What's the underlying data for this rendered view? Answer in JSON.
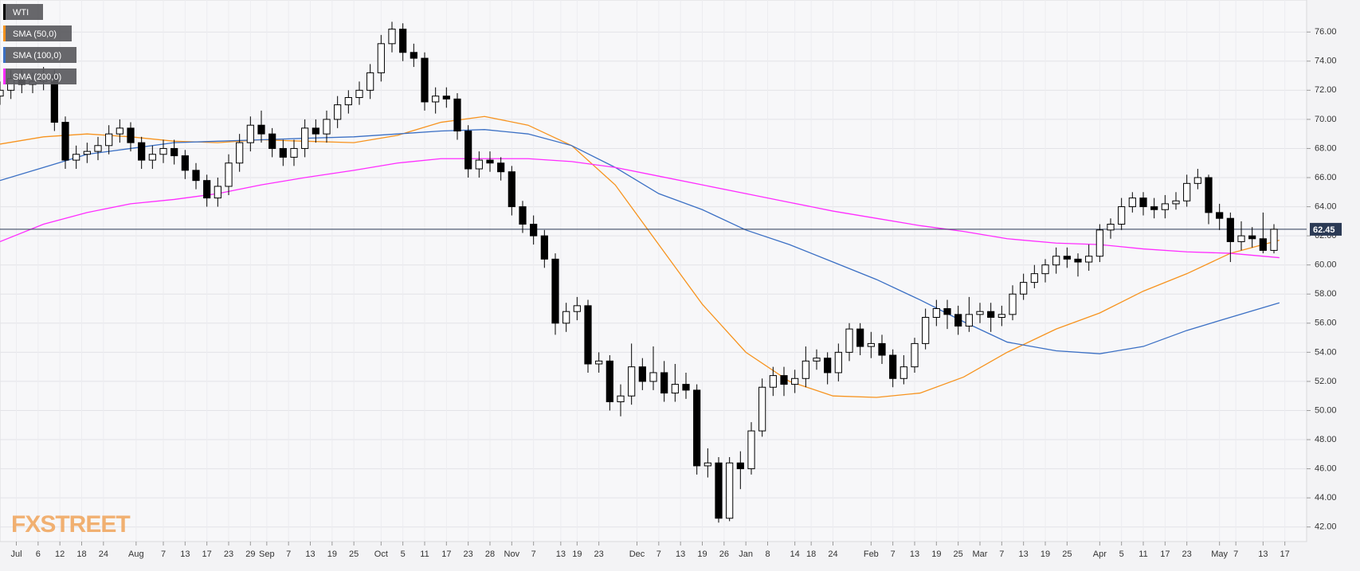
{
  "chart_data": {
    "type": "candlestick",
    "watermark": "FXSTREET",
    "xlim": [
      0,
      240
    ],
    "ylim": [
      41,
      78.2
    ],
    "grid": true,
    "legend": "top-left",
    "yticks": [
      {
        "value": 42,
        "label": "42.00"
      },
      {
        "value": 44,
        "label": "44.00"
      },
      {
        "value": 46,
        "label": "46.00"
      },
      {
        "value": 48,
        "label": "48.00"
      },
      {
        "value": 50,
        "label": "50.00"
      },
      {
        "value": 52,
        "label": "52.00"
      },
      {
        "value": 54,
        "label": "54.00"
      },
      {
        "value": 56,
        "label": "56.00"
      },
      {
        "value": 58,
        "label": "58.00"
      },
      {
        "value": 60,
        "label": "60.00"
      },
      {
        "value": 62,
        "label": "62.00"
      },
      {
        "value": 64,
        "label": "64.00"
      },
      {
        "value": 66,
        "label": "66.00"
      },
      {
        "value": 68,
        "label": "68.00"
      },
      {
        "value": 70,
        "label": "70.00"
      },
      {
        "value": 72,
        "label": "72.00"
      },
      {
        "value": 74,
        "label": "74.00"
      },
      {
        "value": 76,
        "label": "76.00"
      }
    ],
    "xticks": [
      {
        "value": 3,
        "label": "Jul"
      },
      {
        "value": 7,
        "label": "6"
      },
      {
        "value": 11,
        "label": "12"
      },
      {
        "value": 15,
        "label": "18"
      },
      {
        "value": 19,
        "label": "24"
      },
      {
        "value": 25,
        "label": "Aug"
      },
      {
        "value": 30,
        "label": "7"
      },
      {
        "value": 34,
        "label": "13"
      },
      {
        "value": 38,
        "label": "17"
      },
      {
        "value": 42,
        "label": "23"
      },
      {
        "value": 46,
        "label": "29"
      },
      {
        "value": 49,
        "label": "Sep"
      },
      {
        "value": 53,
        "label": "7"
      },
      {
        "value": 57,
        "label": "13"
      },
      {
        "value": 61,
        "label": "19"
      },
      {
        "value": 65,
        "label": "25"
      },
      {
        "value": 70,
        "label": "Oct"
      },
      {
        "value": 74,
        "label": "5"
      },
      {
        "value": 78,
        "label": "11"
      },
      {
        "value": 82,
        "label": "17"
      },
      {
        "value": 86,
        "label": "23"
      },
      {
        "value": 90,
        "label": "28"
      },
      {
        "value": 94,
        "label": "Nov"
      },
      {
        "value": 98,
        "label": "7"
      },
      {
        "value": 103,
        "label": "13"
      },
      {
        "value": 106,
        "label": "19"
      },
      {
        "value": 110,
        "label": "23"
      },
      {
        "value": 117,
        "label": "Dec"
      },
      {
        "value": 121,
        "label": "7"
      },
      {
        "value": 125,
        "label": "13"
      },
      {
        "value": 129,
        "label": "19"
      },
      {
        "value": 133,
        "label": "26"
      },
      {
        "value": 137,
        "label": "Jan"
      },
      {
        "value": 141,
        "label": "8"
      },
      {
        "value": 146,
        "label": "14"
      },
      {
        "value": 149,
        "label": "18"
      },
      {
        "value": 153,
        "label": "24"
      },
      {
        "value": 160,
        "label": "Feb"
      },
      {
        "value": 164,
        "label": "7"
      },
      {
        "value": 168,
        "label": "13"
      },
      {
        "value": 172,
        "label": "19"
      },
      {
        "value": 176,
        "label": "25"
      },
      {
        "value": 180,
        "label": "Mar"
      },
      {
        "value": 184,
        "label": "7"
      },
      {
        "value": 188,
        "label": "13"
      },
      {
        "value": 192,
        "label": "19"
      },
      {
        "value": 196,
        "label": "25"
      },
      {
        "value": 202,
        "label": "Apr"
      },
      {
        "value": 206,
        "label": "5"
      },
      {
        "value": 210,
        "label": "11"
      },
      {
        "value": 214,
        "label": "17"
      },
      {
        "value": 218,
        "label": "23"
      },
      {
        "value": 224,
        "label": "May"
      },
      {
        "value": 227,
        "label": "7"
      },
      {
        "value": 232,
        "label": "13"
      },
      {
        "value": 236,
        "label": "17"
      }
    ],
    "last_price": 62.45,
    "candles": {
      "name": "WTI",
      "color": "#000000",
      "x": [
        0,
        2,
        4,
        6,
        8,
        10,
        12,
        14,
        16,
        18,
        20,
        22,
        24,
        26,
        28,
        30,
        32,
        34,
        36,
        38,
        40,
        42,
        44,
        46,
        48,
        50,
        52,
        54,
        56,
        58,
        60,
        62,
        64,
        66,
        68,
        70,
        72,
        74,
        76,
        78,
        80,
        82,
        84,
        86,
        88,
        90,
        92,
        94,
        96,
        98,
        100,
        102,
        104,
        106,
        108,
        110,
        112,
        114,
        116,
        118,
        120,
        122,
        124,
        126,
        128,
        130,
        132,
        134,
        136,
        138,
        140,
        142,
        144,
        146,
        148,
        150,
        152,
        154,
        156,
        158,
        160,
        162,
        164,
        166,
        168,
        170,
        172,
        174,
        176,
        178,
        180,
        182,
        184,
        186,
        188,
        190,
        192,
        194,
        196,
        198,
        200,
        202,
        204,
        206,
        208,
        210,
        212,
        214,
        216,
        218,
        220,
        222,
        224,
        226,
        228,
        230,
        232,
        234
      ],
      "open": [
        71.6,
        72.0,
        72.8,
        72.4,
        72.6,
        73.0,
        69.8,
        67.2,
        67.6,
        67.8,
        68.2,
        69.0,
        69.4,
        68.4,
        67.2,
        67.6,
        68.0,
        67.5,
        66.5,
        65.8,
        64.6,
        65.4,
        67.0,
        68.4,
        69.6,
        69.0,
        68.0,
        67.4,
        68.0,
        69.4,
        69.0,
        70.0,
        71.0,
        71.5,
        72.0,
        73.2,
        75.2,
        76.2,
        74.6,
        74.2,
        71.2,
        71.6,
        71.4,
        69.2,
        66.6,
        67.2,
        67.0,
        66.4,
        64.0,
        62.8,
        62.0,
        60.4,
        56.0,
        56.8,
        57.2,
        53.2,
        53.4,
        50.6,
        51.0,
        53.0,
        52.0,
        52.6,
        51.2,
        51.8,
        51.4,
        46.2,
        46.4,
        42.6,
        46.4,
        46.0,
        48.6,
        51.6,
        52.4,
        51.8,
        52.2,
        53.4,
        53.6,
        52.6,
        54.0,
        55.6,
        54.4,
        54.6,
        53.8,
        52.2,
        53.0,
        54.6,
        56.4,
        57.0,
        56.6,
        55.8,
        56.6,
        56.8,
        56.4,
        56.6,
        58.0,
        58.8,
        59.4,
        60.0,
        60.6,
        60.4,
        60.2,
        60.6,
        62.4,
        62.8,
        64.0,
        64.6,
        64.0,
        63.8,
        64.2,
        64.4,
        65.6,
        66.0,
        63.6,
        63.2,
        61.6,
        62.0,
        61.8,
        61.0
      ],
      "high": [
        72.6,
        73.4,
        73.4,
        73.2,
        73.6,
        73.4,
        70.2,
        68.2,
        68.4,
        68.8,
        69.6,
        70.0,
        69.8,
        68.8,
        68.2,
        68.6,
        68.6,
        67.9,
        67.0,
        66.2,
        66.0,
        67.6,
        69.0,
        70.2,
        70.6,
        69.4,
        68.6,
        68.6,
        70.0,
        70.0,
        70.6,
        71.6,
        72.0,
        72.6,
        73.8,
        75.8,
        76.7,
        76.6,
        75.2,
        74.6,
        72.2,
        72.2,
        71.8,
        69.6,
        67.8,
        67.8,
        67.4,
        66.8,
        64.4,
        63.4,
        62.4,
        60.8,
        57.4,
        57.8,
        57.6,
        54.0,
        53.8,
        51.8,
        54.6,
        53.6,
        54.4,
        53.4,
        53.2,
        52.6,
        51.8,
        47.4,
        46.8,
        46.8,
        47.2,
        49.2,
        52.2,
        53.0,
        53.0,
        52.8,
        54.4,
        54.2,
        54.0,
        54.6,
        56.0,
        56.0,
        55.4,
        55.2,
        54.2,
        53.8,
        55.0,
        57.0,
        57.6,
        57.6,
        57.2,
        57.8,
        57.4,
        57.4,
        57.2,
        58.6,
        59.4,
        60.0,
        60.4,
        61.2,
        61.2,
        60.8,
        61.4,
        62.8,
        63.2,
        64.6,
        65.0,
        65.0,
        64.6,
        64.8,
        65.0,
        66.2,
        66.6,
        66.2,
        64.2,
        63.6,
        63.0,
        62.6,
        63.6,
        62.8
      ],
      "low": [
        71.0,
        71.4,
        71.8,
        71.8,
        72.0,
        69.2,
        66.6,
        66.6,
        67.0,
        67.2,
        67.6,
        68.4,
        67.8,
        66.6,
        66.6,
        67.0,
        66.9,
        65.9,
        65.2,
        64.0,
        64.0,
        64.8,
        66.4,
        67.8,
        68.4,
        67.4,
        66.8,
        66.8,
        67.4,
        68.4,
        68.4,
        69.4,
        70.4,
        71.0,
        71.4,
        72.6,
        74.6,
        74.0,
        73.6,
        70.6,
        70.4,
        70.8,
        68.6,
        66.0,
        66.0,
        66.4,
        65.8,
        63.4,
        62.2,
        61.4,
        59.8,
        55.2,
        55.4,
        56.2,
        52.6,
        52.6,
        50.0,
        49.6,
        50.4,
        51.4,
        51.4,
        50.6,
        50.6,
        50.8,
        45.6,
        45.4,
        42.3,
        42.4,
        44.6,
        45.6,
        48.2,
        51.0,
        51.0,
        51.2,
        51.6,
        52.8,
        51.8,
        52.0,
        53.4,
        53.8,
        53.6,
        53.2,
        51.6,
        51.8,
        52.6,
        54.2,
        55.8,
        55.6,
        55.2,
        55.4,
        56.0,
        55.4,
        55.8,
        56.2,
        57.6,
        58.4,
        58.8,
        59.4,
        59.8,
        59.2,
        59.6,
        60.2,
        61.8,
        62.4,
        63.6,
        63.4,
        63.2,
        63.2,
        63.8,
        64.0,
        65.2,
        62.8,
        62.4,
        60.2,
        61.0,
        61.2,
        60.8,
        60.8
      ],
      "close": [
        72.0,
        72.8,
        72.4,
        72.6,
        73.0,
        69.8,
        67.2,
        67.6,
        67.8,
        68.2,
        69.0,
        69.4,
        68.4,
        67.2,
        67.6,
        68.0,
        67.5,
        66.5,
        65.8,
        64.6,
        65.4,
        67.0,
        68.4,
        69.6,
        69.0,
        68.0,
        67.4,
        68.0,
        69.4,
        69.0,
        70.0,
        71.0,
        71.5,
        72.0,
        73.2,
        75.2,
        76.2,
        74.6,
        74.2,
        71.2,
        71.6,
        71.4,
        69.2,
        66.6,
        67.2,
        67.0,
        66.4,
        64.0,
        62.8,
        62.0,
        60.4,
        56.0,
        56.8,
        57.2,
        53.2,
        53.4,
        50.6,
        51.0,
        53.0,
        52.0,
        52.6,
        51.2,
        51.8,
        51.4,
        46.2,
        46.4,
        42.6,
        46.4,
        46.0,
        48.6,
        51.6,
        52.4,
        51.8,
        52.2,
        53.4,
        53.6,
        52.6,
        54.0,
        55.6,
        54.4,
        54.6,
        53.8,
        52.2,
        53.0,
        54.6,
        56.4,
        57.0,
        56.6,
        55.8,
        56.6,
        56.8,
        56.4,
        56.6,
        58.0,
        58.8,
        59.4,
        60.0,
        60.6,
        60.4,
        60.2,
        60.6,
        62.4,
        62.8,
        64.0,
        64.6,
        64.0,
        63.8,
        64.2,
        64.4,
        65.6,
        66.0,
        63.6,
        63.2,
        61.6,
        62.0,
        61.8,
        61.0,
        62.45
      ]
    },
    "series": [
      {
        "name": "SMA (50,0)",
        "color": "#f7931e",
        "x": [
          0,
          8,
          16,
          24,
          32,
          40,
          48,
          56,
          65,
          73,
          81,
          89,
          97,
          105,
          113,
          121,
          129,
          137,
          145,
          153,
          161,
          169,
          177,
          185,
          194,
          202,
          210,
          218,
          226,
          235
        ],
        "values": [
          68.3,
          68.8,
          69.0,
          68.8,
          68.5,
          68.4,
          68.6,
          68.5,
          68.4,
          68.9,
          69.8,
          70.2,
          69.6,
          68.2,
          65.5,
          61.4,
          57.3,
          54.0,
          52.0,
          51.0,
          50.9,
          51.2,
          52.3,
          54.0,
          55.6,
          56.7,
          58.2,
          59.4,
          60.8,
          61.7
        ]
      },
      {
        "name": "SMA (100,0)",
        "color": "#3a6fc4",
        "x": [
          0,
          8,
          16,
          24,
          32,
          40,
          48,
          56,
          65,
          73,
          81,
          89,
          97,
          105,
          113,
          121,
          129,
          137,
          145,
          153,
          161,
          169,
          177,
          185,
          194,
          202,
          210,
          218,
          226,
          235
        ],
        "values": [
          65.8,
          66.7,
          67.6,
          68.0,
          68.4,
          68.5,
          68.6,
          68.7,
          68.8,
          69.0,
          69.2,
          69.3,
          69.0,
          68.2,
          66.7,
          64.9,
          63.8,
          62.4,
          61.4,
          60.2,
          59.0,
          57.6,
          56.1,
          54.7,
          54.1,
          53.9,
          54.4,
          55.5,
          56.4,
          57.4
        ]
      },
      {
        "name": "SMA (200,0)",
        "color": "#ff2cff",
        "x": [
          0,
          8,
          16,
          24,
          32,
          40,
          48,
          56,
          65,
          73,
          81,
          89,
          97,
          105,
          113,
          121,
          129,
          137,
          145,
          153,
          161,
          169,
          177,
          185,
          194,
          202,
          210,
          218,
          226,
          235
        ],
        "values": [
          61.6,
          62.8,
          63.6,
          64.2,
          64.5,
          64.9,
          65.5,
          66.0,
          66.5,
          67.0,
          67.3,
          67.3,
          67.3,
          67.1,
          66.7,
          66.1,
          65.5,
          64.9,
          64.3,
          63.7,
          63.2,
          62.7,
          62.3,
          61.8,
          61.5,
          61.4,
          61.1,
          60.9,
          60.8,
          60.5
        ]
      }
    ]
  }
}
